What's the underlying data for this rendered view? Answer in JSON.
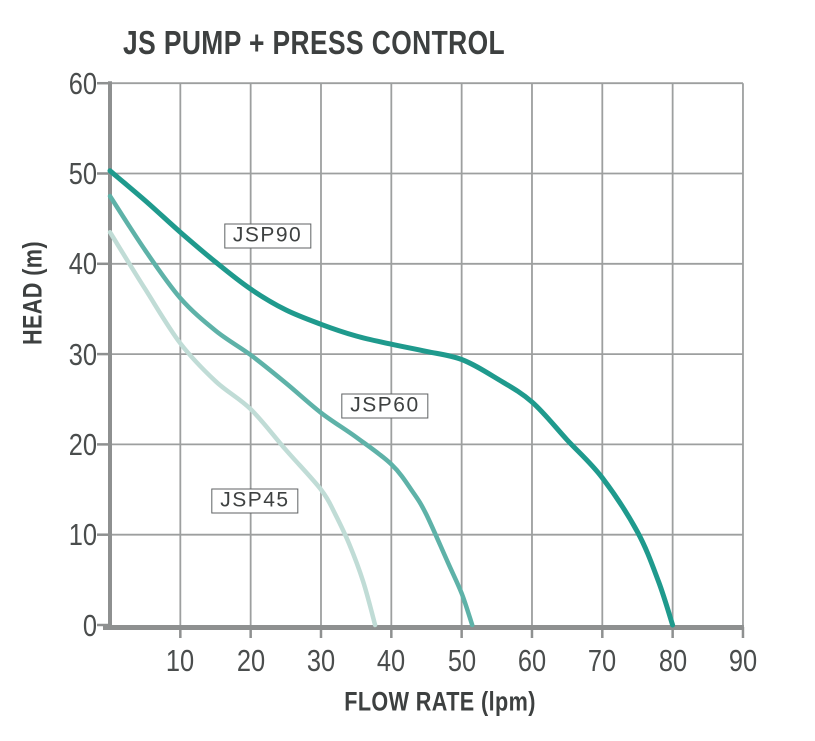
{
  "chart_data": {
    "type": "line",
    "title": "JS PUMP + PRESS CONTROL",
    "xlabel": "FLOW RATE (lpm)",
    "ylabel": "HEAD (m)",
    "xlim": [
      0,
      90
    ],
    "ylim": [
      0,
      60
    ],
    "x_ticks": [
      10,
      20,
      30,
      40,
      50,
      60,
      70,
      80,
      90
    ],
    "y_ticks": [
      0,
      10,
      20,
      30,
      40,
      50,
      60
    ],
    "grid": true,
    "legend_position": "boxed-labels-on-plot",
    "series": [
      {
        "name": "JSP90",
        "color": "#1f9a8d",
        "stroke_width": 5,
        "points": [
          [
            0,
            50.3
          ],
          [
            5,
            47.0
          ],
          [
            10,
            43.5
          ],
          [
            15,
            40.2
          ],
          [
            20,
            37.2
          ],
          [
            25,
            34.9
          ],
          [
            30,
            33.3
          ],
          [
            35,
            32.0
          ],
          [
            40,
            31.1
          ],
          [
            45,
            30.3
          ],
          [
            50,
            29.4
          ],
          [
            55,
            27.3
          ],
          [
            60,
            24.7
          ],
          [
            65,
            20.5
          ],
          [
            70,
            16.3
          ],
          [
            75,
            10.3
          ],
          [
            78,
            4.8
          ],
          [
            80,
            0
          ]
        ],
        "label": {
          "text": "JSP90",
          "x": 22.4,
          "y": 43.1
        }
      },
      {
        "name": "JSP60",
        "color": "#5eb2a8",
        "stroke_width": 4.5,
        "points": [
          [
            0,
            47.5
          ],
          [
            5,
            41.5
          ],
          [
            10,
            36.2
          ],
          [
            15,
            32.6
          ],
          [
            20,
            29.9
          ],
          [
            25,
            26.8
          ],
          [
            30,
            23.5
          ],
          [
            35,
            20.8
          ],
          [
            40,
            17.8
          ],
          [
            43,
            14.8
          ],
          [
            45,
            12.2
          ],
          [
            48,
            7.0
          ],
          [
            50,
            3.5
          ],
          [
            51.5,
            0
          ]
        ],
        "label": {
          "text": "JSP60",
          "x": 39.1,
          "y": 24.3
        }
      },
      {
        "name": "JSP45",
        "color": "#c0dcd6",
        "stroke_width": 4.5,
        "points": [
          [
            0,
            43.5
          ],
          [
            5,
            37.2
          ],
          [
            10,
            31.2
          ],
          [
            15,
            27.0
          ],
          [
            20,
            23.9
          ],
          [
            25,
            19.4
          ],
          [
            30,
            15.0
          ],
          [
            32,
            12.3
          ],
          [
            34,
            9.0
          ],
          [
            36,
            4.8
          ],
          [
            37.7,
            0
          ]
        ],
        "label": {
          "text": "JSP45",
          "x": 20.6,
          "y": 13.7
        }
      }
    ],
    "style": {
      "grid_color": "#9d9f9f",
      "axis_color": "#8e9090",
      "text_color": "#3d4040",
      "tick_text_color": "#4a4d4d"
    }
  }
}
